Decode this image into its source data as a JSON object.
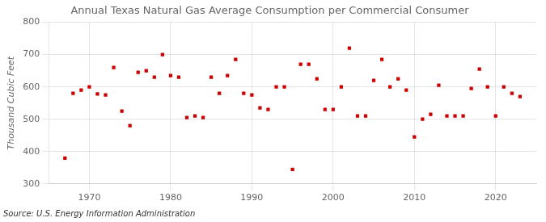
{
  "chart_data": {
    "type": "scatter",
    "title": "Annual Texas Natural Gas Average Consumption per Commercial Consumer",
    "ylabel": "Thousand Cubic Feet",
    "annotation": "Source: U.S. Energy Information Administration",
    "x": [
      1967,
      1968,
      1969,
      1970,
      1971,
      1972,
      1973,
      1974,
      1975,
      1976,
      1977,
      1978,
      1979,
      1980,
      1981,
      1982,
      1983,
      1984,
      1985,
      1986,
      1987,
      1988,
      1989,
      1990,
      1991,
      1992,
      1993,
      1994,
      1995,
      1996,
      1997,
      1998,
      1999,
      2000,
      2001,
      2002,
      2003,
      2004,
      2005,
      2006,
      2007,
      2008,
      2009,
      2010,
      2011,
      2012,
      2013,
      2014,
      2015,
      2016,
      2017,
      2018,
      2019,
      2020,
      2021,
      2022,
      2023
    ],
    "values": [
      380,
      580,
      590,
      600,
      578,
      575,
      660,
      525,
      480,
      645,
      650,
      630,
      700,
      635,
      630,
      505,
      510,
      505,
      630,
      580,
      635,
      685,
      580,
      575,
      535,
      530,
      600,
      600,
      345,
      670,
      670,
      625,
      530,
      530,
      600,
      720,
      510,
      510,
      620,
      685,
      600,
      625,
      590,
      445,
      500,
      515,
      605,
      510,
      510,
      510,
      595,
      655,
      600,
      510,
      600,
      580,
      570
    ],
    "color": "#cc0000",
    "marker": "square",
    "xlim": [
      1965,
      2025
    ],
    "ylim": [
      300,
      800
    ],
    "xticks": [
      1970,
      1980,
      1990,
      2000,
      2010,
      2020
    ],
    "yticks": [
      300,
      400,
      500,
      600,
      700,
      800
    ],
    "grid": true
  }
}
